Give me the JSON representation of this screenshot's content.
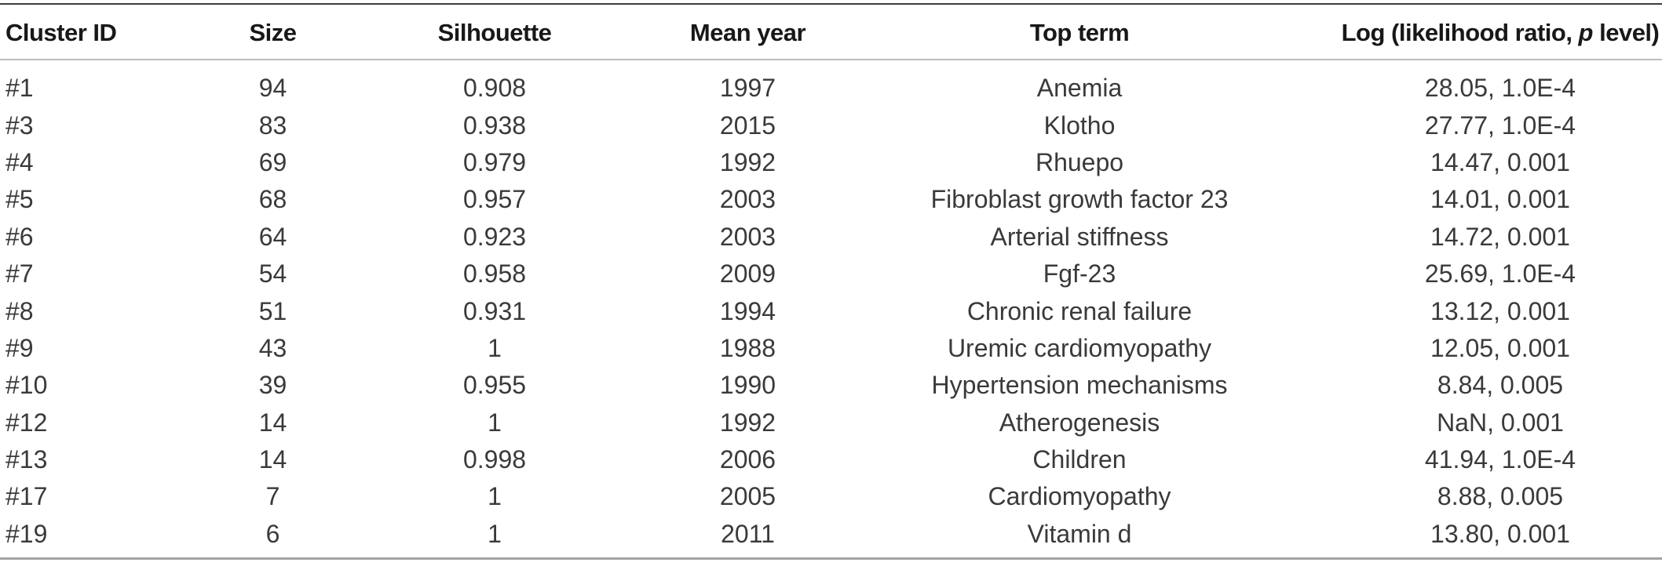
{
  "table": {
    "columns": [
      {
        "key": "cluster-id",
        "label": "Cluster ID"
      },
      {
        "key": "size",
        "label": "Size"
      },
      {
        "key": "silhouette",
        "label": "Silhouette"
      },
      {
        "key": "mean-year",
        "label": "Mean year"
      },
      {
        "key": "top-term",
        "label": "Top term"
      },
      {
        "key": "log-likelihood-ratio",
        "label_prefix": "Log (likelihood ratio, ",
        "label_italic": "p",
        "label_suffix": " level)"
      }
    ],
    "rows": [
      [
        "#1",
        "94",
        "0.908",
        "1997",
        "Anemia",
        "28.05, 1.0E-4"
      ],
      [
        "#3",
        "83",
        "0.938",
        "2015",
        "Klotho",
        "27.77, 1.0E-4"
      ],
      [
        "#4",
        "69",
        "0.979",
        "1992",
        "Rhuepo",
        "14.47, 0.001"
      ],
      [
        "#5",
        "68",
        "0.957",
        "2003",
        "Fibroblast growth factor 23",
        "14.01, 0.001"
      ],
      [
        "#6",
        "64",
        "0.923",
        "2003",
        "Arterial stiffness",
        "14.72, 0.001"
      ],
      [
        "#7",
        "54",
        "0.958",
        "2009",
        "Fgf-23",
        "25.69, 1.0E-4"
      ],
      [
        "#8",
        "51",
        "0.931",
        "1994",
        "Chronic renal failure",
        "13.12, 0.001"
      ],
      [
        "#9",
        "43",
        "1",
        "1988",
        "Uremic cardiomyopathy",
        "12.05, 0.001"
      ],
      [
        "#10",
        "39",
        "0.955",
        "1990",
        "Hypertension mechanisms",
        "8.84, 0.005"
      ],
      [
        "#12",
        "14",
        "1",
        "1992",
        "Atherogenesis",
        "NaN, 0.001"
      ],
      [
        "#13",
        "14",
        "0.998",
        "2006",
        "Children",
        "41.94, 1.0E-4"
      ],
      [
        "#17",
        "7",
        "1",
        "2005",
        "Cardiomyopathy",
        "8.88, 0.005"
      ],
      [
        "#19",
        "6",
        "1",
        "2011",
        "Vitamin d",
        "13.80, 0.001"
      ]
    ],
    "colors": {
      "background": "#ffffff",
      "text": "#3a3a3a",
      "header_text": "#181818",
      "rule_top": "#3d3d3d",
      "rule_header": "#bcbcbc",
      "rule_bottom": "#a3a3a3"
    }
  }
}
